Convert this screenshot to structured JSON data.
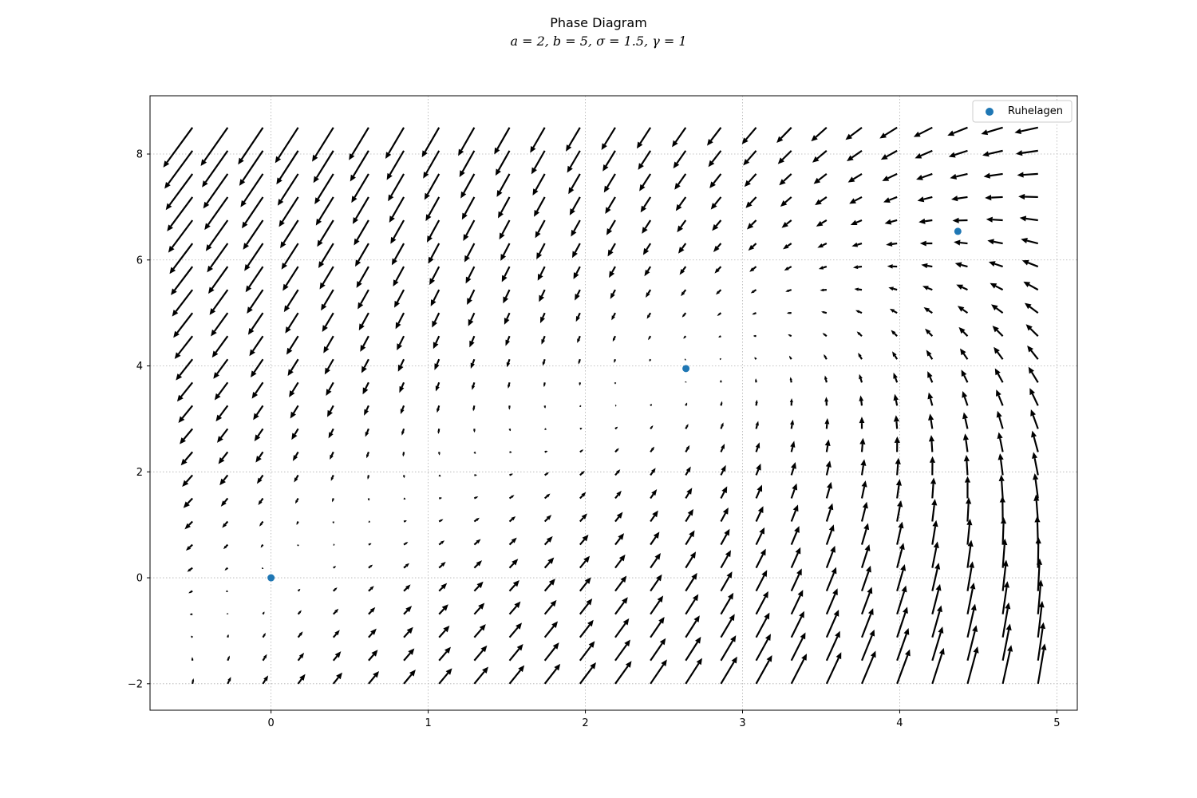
{
  "chart_data": {
    "type": "quiver",
    "title": "Phase Diagram",
    "subtitle": "a = 2, b = 5, σ = 1.5, γ = 1",
    "xlabel": "",
    "ylabel": "",
    "xlim": [
      -0.77,
      5.13
    ],
    "ylim": [
      -2.5,
      9.1
    ],
    "x_ticks": [
      0,
      1,
      2,
      3,
      4,
      5
    ],
    "y_ticks": [
      -2,
      0,
      2,
      4,
      6,
      8
    ],
    "x_tick_labels": [
      "0",
      "1",
      "2",
      "3",
      "4",
      "5"
    ],
    "y_tick_labels": [
      "−2",
      "0",
      "2",
      "4",
      "6",
      "8"
    ],
    "grid": true,
    "legend": {
      "position": "top-right",
      "entries": [
        "Ruhelagen"
      ]
    },
    "params": {
      "a": 2,
      "b": 5,
      "sigma": 1.5,
      "gamma": 1
    },
    "vector_field": {
      "x_range": [
        -0.5,
        4.88
      ],
      "y_range": [
        -2.0,
        8.5
      ],
      "grid_size": 25,
      "color": "#000000"
    },
    "series": [
      {
        "name": "Ruhelagen",
        "type": "scatter",
        "color": "#1f77b4",
        "points": [
          {
            "x": 0.0,
            "y": 0.0
          },
          {
            "x": 2.64,
            "y": 3.95
          },
          {
            "x": 4.37,
            "y": 6.54
          }
        ]
      }
    ]
  }
}
